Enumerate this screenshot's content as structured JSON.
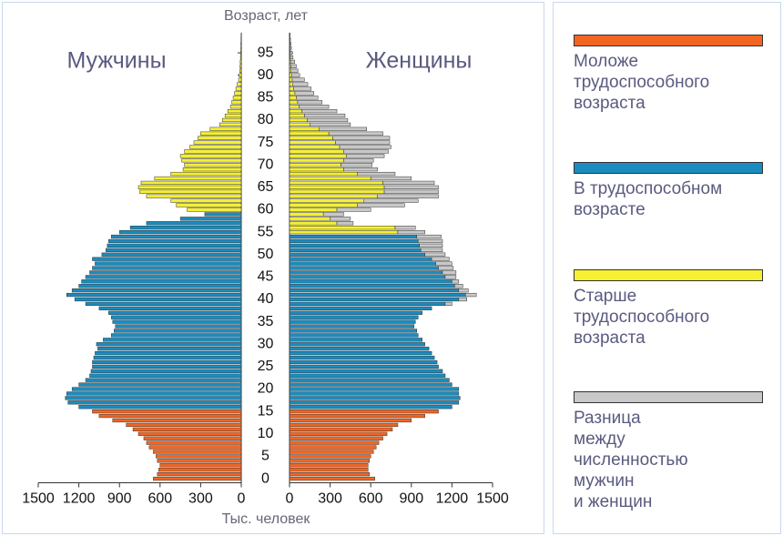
{
  "chart_data": {
    "type": "pyramid",
    "age_axis_label": "Возраст, лет",
    "x_axis_label": "Тыс. человек",
    "left_label": "Мужчины",
    "right_label": "Женщины",
    "ages": [
      0,
      1,
      2,
      3,
      4,
      5,
      6,
      7,
      8,
      9,
      10,
      11,
      12,
      13,
      14,
      15,
      16,
      17,
      18,
      19,
      20,
      21,
      22,
      23,
      24,
      25,
      26,
      27,
      28,
      29,
      30,
      31,
      32,
      33,
      34,
      35,
      36,
      37,
      38,
      39,
      40,
      41,
      42,
      43,
      44,
      45,
      46,
      47,
      48,
      49,
      50,
      51,
      52,
      53,
      54,
      55,
      56,
      57,
      58,
      59,
      60,
      61,
      62,
      63,
      64,
      65,
      66,
      67,
      68,
      69,
      70,
      71,
      72,
      73,
      74,
      75,
      76,
      77,
      78,
      79,
      80,
      81,
      82,
      83,
      84,
      85,
      86,
      87,
      88,
      89,
      90,
      91,
      92,
      93,
      94,
      95,
      96,
      97,
      98,
      99
    ],
    "ylim": [
      -0.5,
      99.5
    ],
    "yticks": [
      0,
      5,
      10,
      15,
      20,
      25,
      30,
      35,
      40,
      45,
      50,
      55,
      60,
      65,
      70,
      75,
      80,
      85,
      90,
      95
    ],
    "xlim": [
      0,
      1500
    ],
    "xticks": [
      0,
      300,
      600,
      900,
      1200,
      1500
    ],
    "men": [
      650,
      620,
      610,
      600,
      620,
      630,
      650,
      680,
      700,
      720,
      760,
      800,
      850,
      950,
      1050,
      1100,
      1200,
      1280,
      1300,
      1290,
      1250,
      1200,
      1150,
      1120,
      1110,
      1100,
      1100,
      1090,
      1080,
      1060,
      1070,
      1020,
      960,
      940,
      930,
      950,
      960,
      980,
      1050,
      1150,
      1230,
      1290,
      1250,
      1200,
      1180,
      1150,
      1120,
      1100,
      1080,
      1100,
      1030,
      1000,
      990,
      980,
      960,
      900,
      820,
      700,
      450,
      270,
      400,
      480,
      520,
      700,
      750,
      760,
      740,
      640,
      520,
      430,
      420,
      440,
      450,
      420,
      380,
      350,
      320,
      300,
      230,
      160,
      140,
      120,
      100,
      80,
      70,
      60,
      50,
      40,
      30,
      20,
      15,
      12,
      10,
      8,
      6,
      5,
      4,
      3,
      2,
      1
    ],
    "women": [
      630,
      590,
      580,
      580,
      590,
      600,
      620,
      640,
      660,
      690,
      720,
      760,
      800,
      900,
      1000,
      1100,
      1200,
      1250,
      1260,
      1250,
      1250,
      1200,
      1180,
      1150,
      1130,
      1100,
      1090,
      1070,
      1050,
      1030,
      1000,
      980,
      950,
      940,
      920,
      930,
      950,
      980,
      1050,
      1150,
      1250,
      1300,
      1250,
      1220,
      1200,
      1150,
      1130,
      1100,
      1080,
      1050,
      1000,
      970,
      960,
      950,
      940,
      800,
      780,
      350,
      300,
      250,
      350,
      500,
      550,
      650,
      700,
      700,
      690,
      600,
      500,
      400,
      380,
      400,
      420,
      400,
      370,
      340,
      320,
      290,
      220,
      150,
      130,
      110,
      90,
      70,
      60,
      50,
      40,
      30,
      25,
      20,
      15,
      12,
      10,
      8,
      6,
      5,
      4,
      3,
      2,
      1
    ],
    "difference": {
      "name": "Разница\nмежду\nчисленностью\nмужчин\nи женщин",
      "color": "#c8c8c8",
      "values": [
        0,
        0,
        0,
        0,
        0,
        0,
        0,
        0,
        0,
        0,
        0,
        0,
        0,
        0,
        0,
        0,
        0,
        0,
        0,
        0,
        0,
        0,
        0,
        0,
        0,
        0,
        0,
        0,
        0,
        0,
        0,
        0,
        0,
        0,
        0,
        0,
        0,
        0,
        0,
        50,
        60,
        80,
        70,
        60,
        50,
        80,
        100,
        110,
        120,
        130,
        150,
        160,
        170,
        180,
        180,
        200,
        150,
        120,
        150,
        150,
        250,
        350,
        400,
        450,
        400,
        400,
        380,
        300,
        280,
        250,
        230,
        220,
        280,
        330,
        380,
        400,
        420,
        400,
        350,
        300,
        300,
        300,
        260,
        220,
        180,
        160,
        140,
        130,
        110,
        90,
        60,
        50,
        40,
        30,
        20,
        15,
        10,
        8,
        5,
        3
      ]
    },
    "age_groups": [
      {
        "name": "Моложе\nтрудоспособного\nвозраста",
        "color": "#f26522",
        "men_ages": [
          0,
          15
        ],
        "women_ages": [
          0,
          15
        ]
      },
      {
        "name": "В трудоспособном\nвозрасте",
        "color": "#1a8cbf",
        "men_ages": [
          16,
          59
        ],
        "women_ages": [
          16,
          54
        ]
      },
      {
        "name": "Старше\nтрудоспособного\nвозраста",
        "color": "#f5f032",
        "men_ages": [
          60,
          99
        ],
        "women_ages": [
          55,
          99
        ]
      }
    ]
  }
}
